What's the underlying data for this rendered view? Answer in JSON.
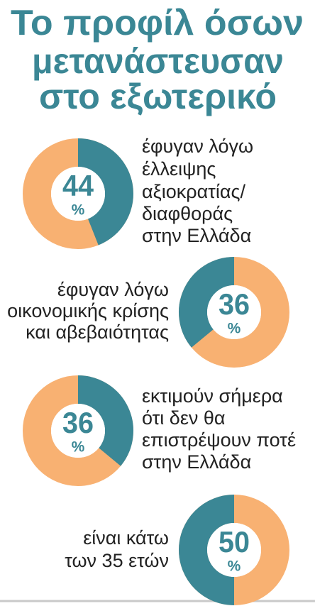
{
  "title": [
    "Το προφίλ όσων",
    "μετανάστευσαν",
    "στο εξωτερικό"
  ],
  "chart_data": [
    {
      "type": "donut",
      "value": 44,
      "unit": "%",
      "color": "#3b8795",
      "rest_color": "#f8b172",
      "direction": "clockwise",
      "label_side": "right",
      "label": [
        "έφυγαν λόγω",
        "έλλειψης",
        "αξιοκρατίας/",
        "διαφθοράς",
        "στην Ελλάδα"
      ]
    },
    {
      "type": "donut",
      "value": 36,
      "unit": "%",
      "color": "#3b8795",
      "rest_color": "#f8b172",
      "direction": "counterclockwise",
      "label_side": "left",
      "label": [
        "έφυγαν λόγω",
        "οικονομικής κρίσης",
        "και αβεβαιότητας"
      ]
    },
    {
      "type": "donut",
      "value": 36,
      "unit": "%",
      "color": "#3b8795",
      "rest_color": "#f8b172",
      "direction": "clockwise",
      "label_side": "right",
      "label": [
        "εκτιμούν σήμερα",
        "ότι δεν θα",
        "επιστρέψουν ποτέ",
        "στην Ελλάδα"
      ]
    },
    {
      "type": "donut",
      "value": 50,
      "unit": "%",
      "color": "#3b8795",
      "rest_color": "#f8b172",
      "direction": "counterclockwise",
      "label_side": "left",
      "label": [
        "είναι κάτω",
        "των 35 ετών"
      ]
    }
  ]
}
